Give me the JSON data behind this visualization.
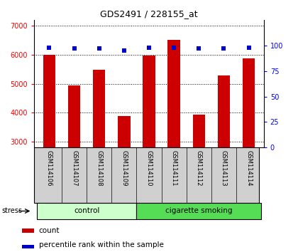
{
  "title": "GDS2491 / 228155_at",
  "samples": [
    "GSM114106",
    "GSM114107",
    "GSM114108",
    "GSM114109",
    "GSM114110",
    "GSM114111",
    "GSM114112",
    "GSM114113",
    "GSM114114"
  ],
  "counts": [
    6000,
    4950,
    5480,
    3880,
    5980,
    6530,
    3930,
    5300,
    5880
  ],
  "percentile_ranks": [
    98,
    97,
    97,
    95,
    98,
    98,
    97,
    97,
    98
  ],
  "ylim_left": [
    2800,
    7200
  ],
  "ylim_right": [
    0,
    125
  ],
  "yticks_left": [
    3000,
    4000,
    5000,
    6000,
    7000
  ],
  "yticks_right": [
    0,
    25,
    50,
    75,
    100
  ],
  "bar_color": "#cc0000",
  "dot_color": "#0000cc",
  "bar_bottom": 2800,
  "ctrl_color": "#ccffcc",
  "smoke_color": "#55dd55",
  "gray_color": "#d0d0d0",
  "n_ctrl": 4,
  "stress_label": "stress",
  "ctrl_label": "control",
  "smoke_label": "cigarette smoking",
  "legend_count_label": "count",
  "legend_pct_label": "percentile rank within the sample"
}
